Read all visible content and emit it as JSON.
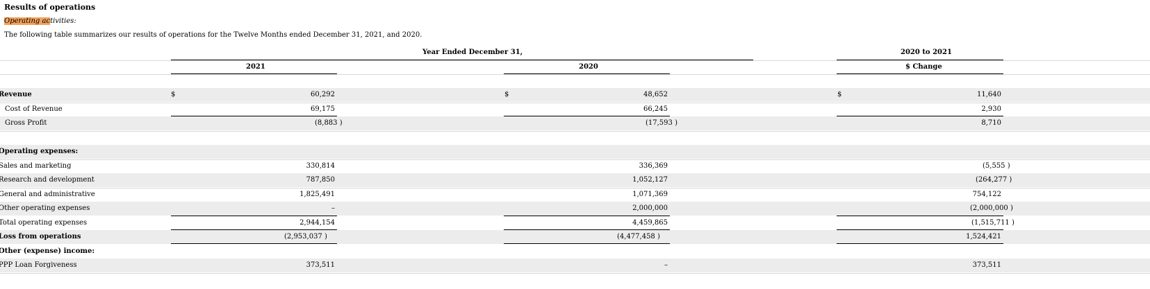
{
  "section_title": "Results of operations",
  "subtitle_highlight": "Operating ac",
  "subtitle_rest": "tivities:",
  "intro": "The following table summarizes our results of operations for the Twelve Months ended December 31, 2021, and 2020.",
  "headers": {
    "group_left": "Year Ended December 31,",
    "group_right": "2020 to 2021",
    "col_2021": "2021",
    "col_2020": "2020",
    "col_change": "$ Change"
  },
  "rows": [
    {
      "label": "Revenue",
      "dollar": "$",
      "v2021": "60,292",
      "v2020": "48,652",
      "change": "11,640"
    },
    {
      "label": "Cost of Revenue",
      "dollar": "",
      "v2021": "69,175",
      "v2020": "66,245",
      "change": "2,930"
    },
    {
      "label": "Gross Profit",
      "dollar": "",
      "v2021": "(8,883 )",
      "v2020": "(17,593 )",
      "change": "8,710"
    },
    {
      "label": "",
      "dollar": "",
      "v2021": "",
      "v2020": "",
      "change": ""
    },
    {
      "label": "Operating expenses:",
      "dollar": "",
      "v2021": "",
      "v2020": "",
      "change": ""
    },
    {
      "label": "Sales and marketing",
      "dollar": "",
      "v2021": "330,814",
      "v2020": "336,369",
      "change": "(5,555 )"
    },
    {
      "label": "Research and development",
      "dollar": "",
      "v2021": "787,850",
      "v2020": "1,052,127",
      "change": "(264,277 )"
    },
    {
      "label": "General and administrative",
      "dollar": "",
      "v2021": "1,825,491",
      "v2020": "1,071,369",
      "change": "754,122"
    },
    {
      "label": "Other operating expenses",
      "dollar": "",
      "v2021": "–",
      "v2020": "2,000,000",
      "change": "(2,000,000 )"
    },
    {
      "label": "Total operating expenses",
      "dollar": "",
      "v2021": "2,944,154",
      "v2020": "4,459,865",
      "change": "(1,515,711 )"
    },
    {
      "label": "Loss from operations",
      "dollar": "",
      "v2021": "(2,953,037 )",
      "v2020": "(4,477,458 )",
      "change": "1,524,421"
    },
    {
      "label": "Other (expense) income:",
      "dollar": "",
      "v2021": "",
      "v2020": "",
      "change": ""
    },
    {
      "label": "PPP Loan Forgiveness",
      "dollar": "",
      "v2021": "373,511",
      "v2020": "–",
      "change": "373,511"
    }
  ]
}
